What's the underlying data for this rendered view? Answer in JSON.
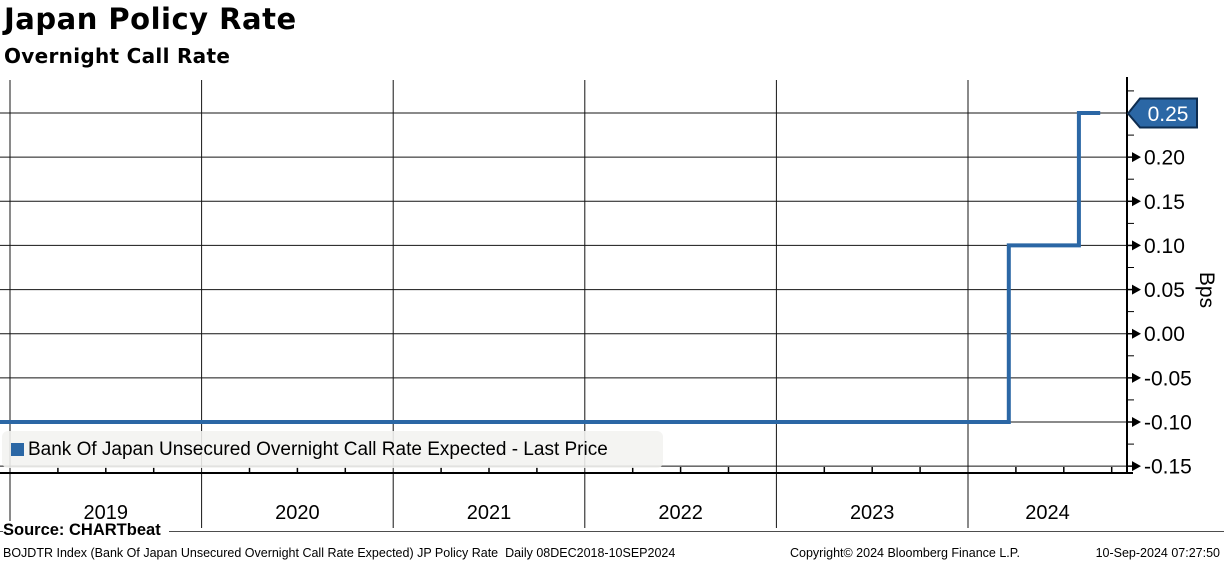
{
  "header": {
    "title": "Japan Policy Rate",
    "subtitle": "Overnight Call Rate"
  },
  "chart_data": {
    "type": "line",
    "line_style": "step",
    "title": "Japan Policy Rate",
    "subtitle": "Overnight Call Rate",
    "ylabel": "Bps",
    "legend": "Bank Of Japan Unsecured Overnight Call Rate Expected - Last Price",
    "legend_position": "bottom-left-inside",
    "grid": true,
    "x_ticks": [
      "2019",
      "2020",
      "2021",
      "2022",
      "2023",
      "2024"
    ],
    "y_ticks": [
      "0.25",
      "0.20",
      "0.15",
      "0.10",
      "0.05",
      "0.00",
      "-0.05",
      "-0.10",
      "-0.15"
    ],
    "ylim": [
      -0.15,
      0.25
    ],
    "x_range_label": "08DEC2018-10SEP2024",
    "last_price": "0.25",
    "step_values": [
      -0.1,
      0.1,
      0.25
    ],
    "series": [
      {
        "name": "Bank Of Japan Unsecured Overnight Call Rate Expected - Last Price",
        "color": "#2b67a5",
        "points": [
          [
            2018.94,
            -0.1
          ],
          [
            2024.213,
            -0.1
          ],
          [
            2024.213,
            0.1
          ],
          [
            2024.579,
            0.1
          ],
          [
            2024.579,
            0.25
          ],
          [
            2024.69,
            0.25
          ]
        ]
      }
    ]
  },
  "colors": {
    "line": "#2b67a5",
    "tag_fill": "#2b67a5",
    "tag_border": "#0d2c4f",
    "tag_text": "#ffffff",
    "grid": "#141414",
    "axis": "#000000",
    "legend_bg": "#f2f2f0"
  },
  "footer": {
    "source": "Source: CHARTbeat",
    "description": "BOJDTR Index (Bank Of Japan Unsecured Overnight Call Rate Expected) JP Policy Rate  Daily 08DEC2018-10SEP2024",
    "copyright": "Copyright© 2024 Bloomberg Finance L.P.",
    "timestamp": "10-Sep-2024 07:27:50"
  }
}
